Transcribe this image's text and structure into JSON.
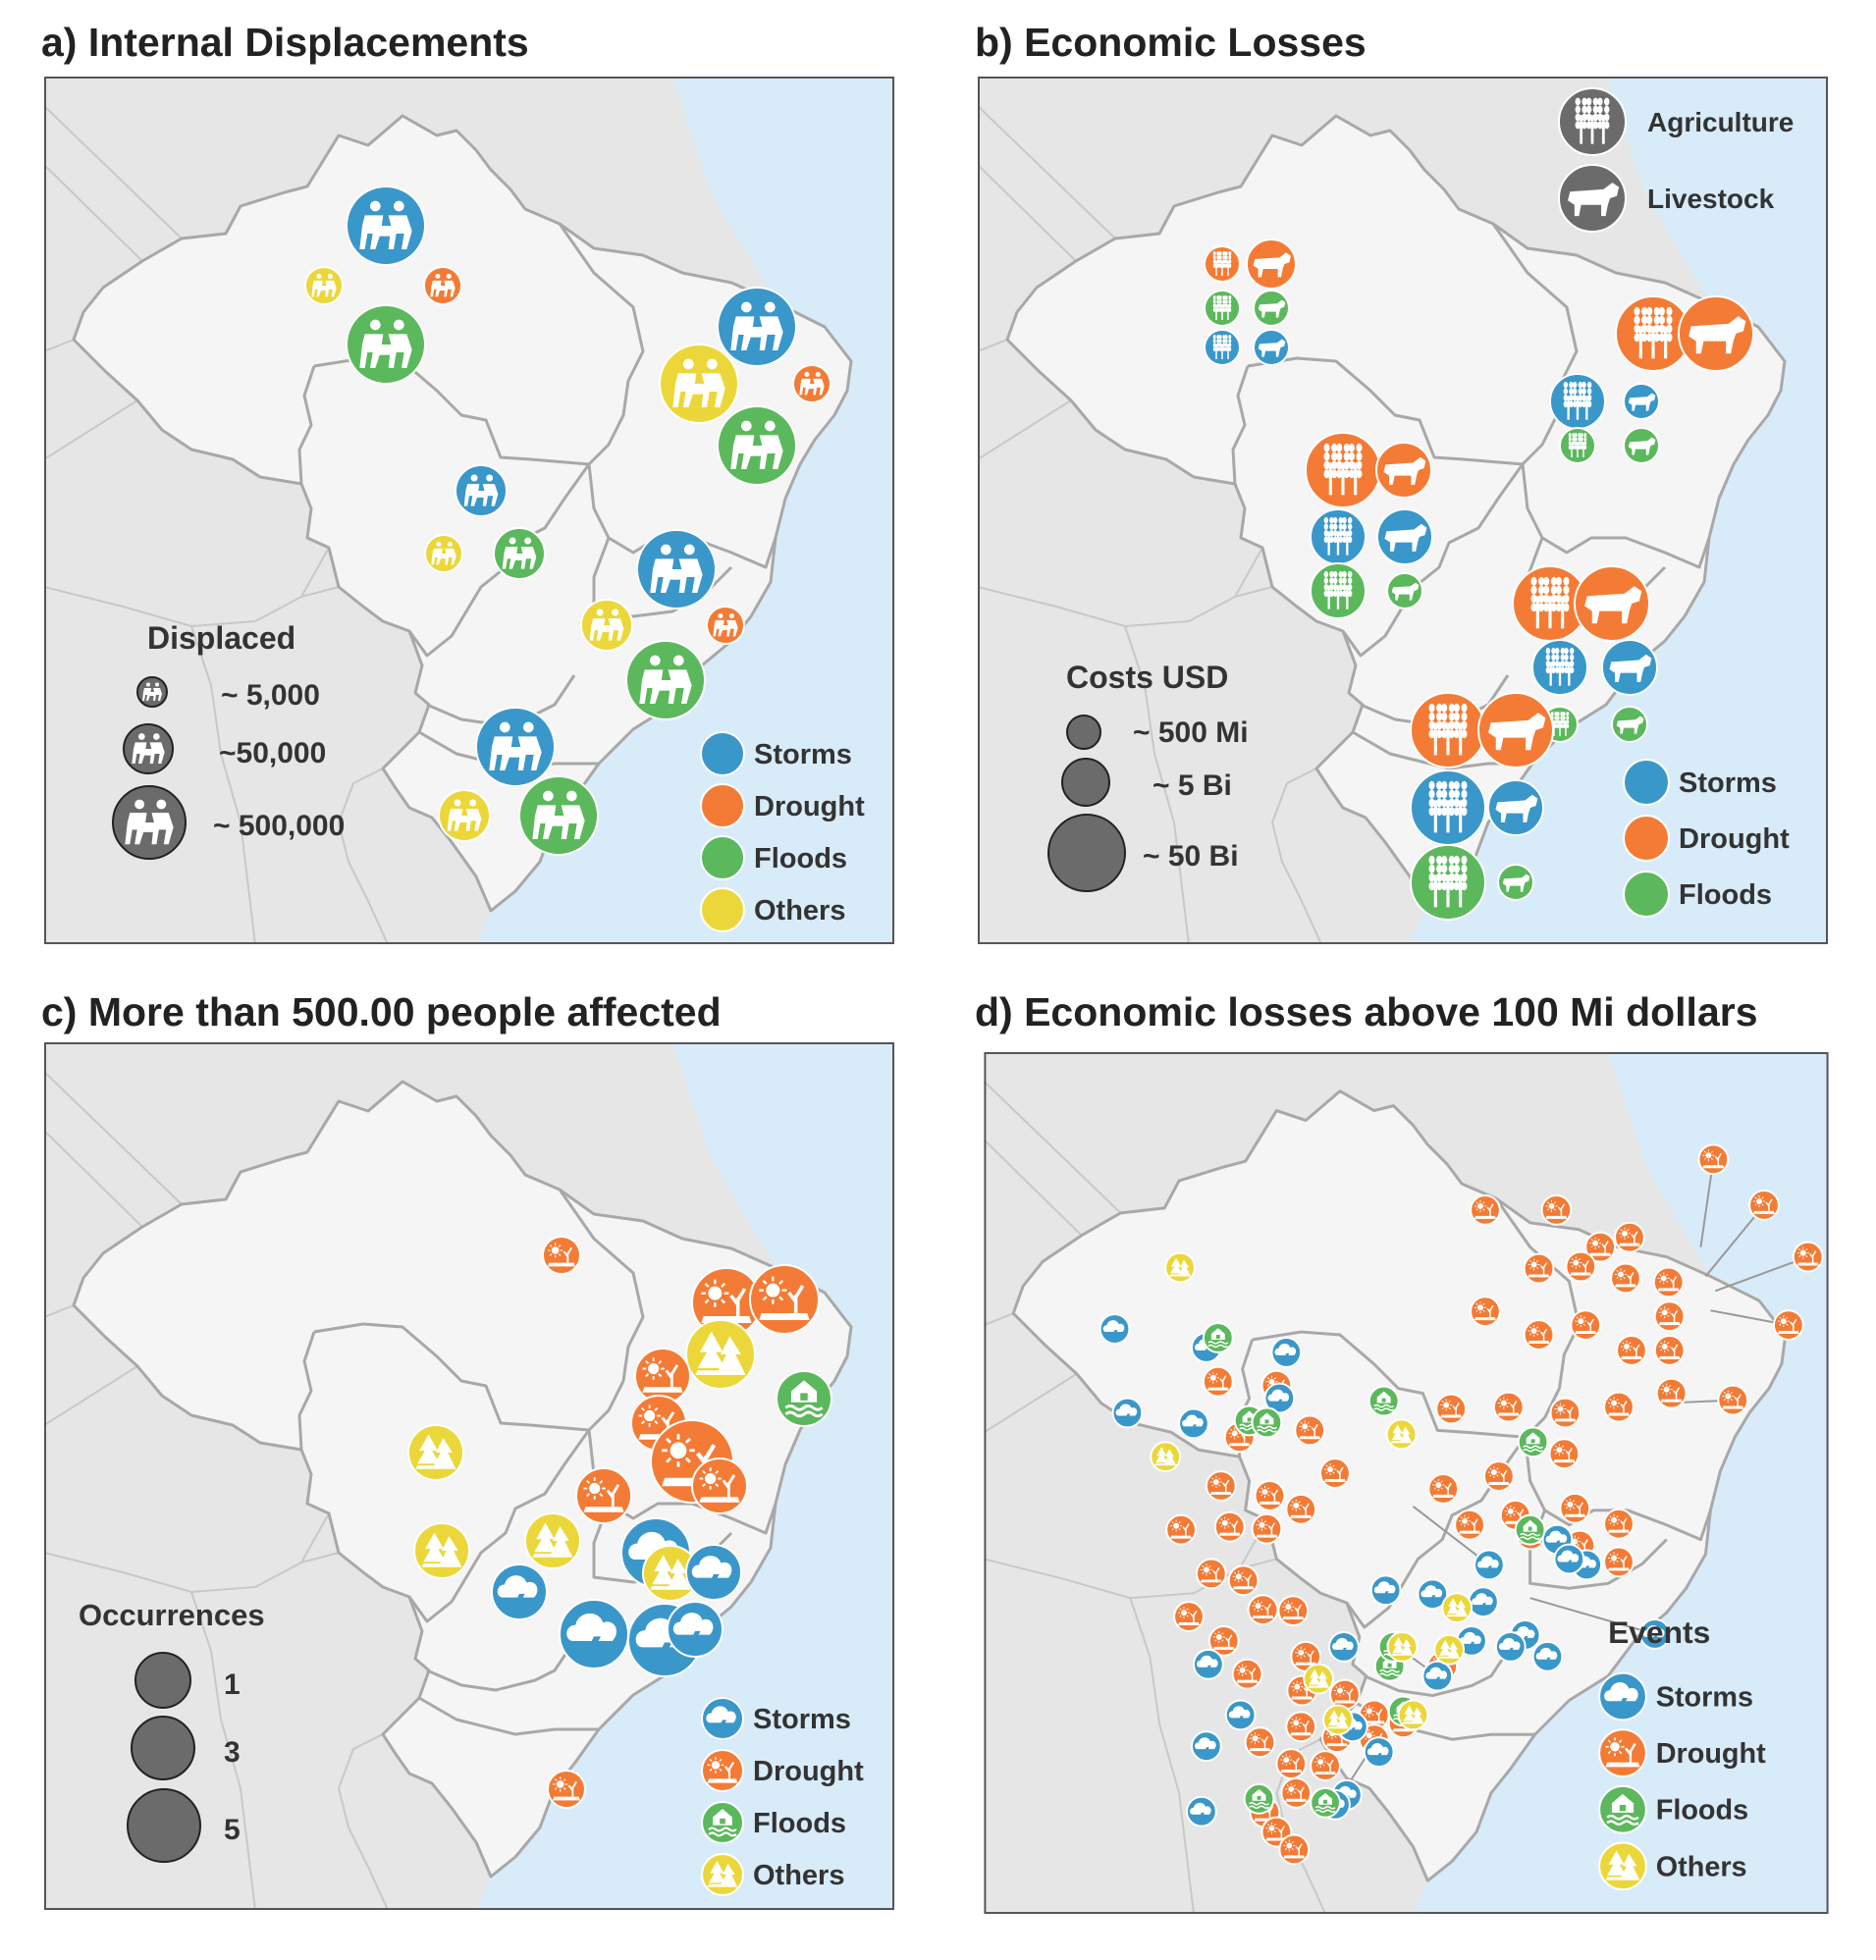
{
  "panels": {
    "a": {
      "title": "a) Internal Displacements",
      "legend_size_title": "Displaced",
      "size_labels": [
        "~ 5,000",
        "~50,000",
        "~ 500,000"
      ],
      "category_legend": [
        "Storms",
        "Drought",
        "Floods",
        "Others"
      ]
    },
    "b": {
      "title": "b) Economic Losses",
      "icon_legend": [
        "Agriculture",
        "Livestock"
      ],
      "legend_size_title": "Costs USD",
      "size_labels": [
        "~ 500 Mi",
        "~ 5 Bi",
        "~ 50 Bi"
      ],
      "category_legend": [
        "Storms",
        "Drought",
        "Floods"
      ]
    },
    "c": {
      "title": "c) More than 500.00 people affected",
      "legend_size_title": "Occurrences",
      "size_labels": [
        "1",
        "3",
        "5"
      ],
      "category_legend": [
        "Storms",
        "Drought",
        "Floods",
        "Others"
      ]
    },
    "d": {
      "title": "d) Economic losses above 100 Mi dollars",
      "legend_title": "Events",
      "category_legend": [
        "Storms",
        "Drought",
        "Floods",
        "Others"
      ]
    }
  },
  "colors": {
    "Storms": "#3a97c9",
    "Drought": "#f47b35",
    "Floods": "#5cb85c",
    "Others": "#ecd73a",
    "legend_size": "#6b6b6b",
    "ocean": "#d8ebf8",
    "land": "#f5f5f5",
    "outside": "#e6e6e6"
  },
  "icons": {
    "Storms": "storm-cloud-icon",
    "Drought": "drought-sun-icon",
    "Floods": "flood-house-icon",
    "Others": "wildfire-trees-icon",
    "displaced": "displaced-people-icon",
    "Agriculture": "wheat-icon",
    "Livestock": "cow-icon"
  },
  "markers": {
    "a": [
      {
        "cat": "Storms",
        "size": 5
      },
      {
        "cat": "Drought",
        "size": 2
      },
      {
        "cat": "Floods",
        "size": 5
      },
      {
        "cat": "Others",
        "size": 2
      },
      {
        "cat": "Storms",
        "size": 5
      },
      {
        "cat": "Drought",
        "size": 2
      },
      {
        "cat": "Floods",
        "size": 5
      },
      {
        "cat": "Others",
        "size": 5
      },
      {
        "cat": "Storms",
        "size": 3
      },
      {
        "cat": "Floods",
        "size": 3
      },
      {
        "cat": "Others",
        "size": 2
      },
      {
        "cat": "Storms",
        "size": 5
      },
      {
        "cat": "Drought",
        "size": 2
      },
      {
        "cat": "Floods",
        "size": 5
      },
      {
        "cat": "Others",
        "size": 3
      },
      {
        "cat": "Storms",
        "size": 5
      },
      {
        "cat": "Floods",
        "size": 5
      },
      {
        "cat": "Others",
        "size": 3
      }
    ],
    "b": [
      {
        "cat": "Drought",
        "kind": "Agriculture",
        "size": 2
      },
      {
        "cat": "Drought",
        "kind": "Livestock",
        "size": 3
      },
      {
        "cat": "Floods",
        "kind": "Agriculture",
        "size": 2
      },
      {
        "cat": "Floods",
        "kind": "Livestock",
        "size": 2
      },
      {
        "cat": "Storms",
        "kind": "Agriculture",
        "size": 2
      },
      {
        "cat": "Storms",
        "kind": "Livestock",
        "size": 2
      },
      {
        "cat": "Drought",
        "kind": "Agriculture",
        "size": 5
      },
      {
        "cat": "Drought",
        "kind": "Livestock",
        "size": 5
      },
      {
        "cat": "Storms",
        "kind": "Agriculture",
        "size": 4
      },
      {
        "cat": "Storms",
        "kind": "Livestock",
        "size": 2
      },
      {
        "cat": "Floods",
        "kind": "Agriculture",
        "size": 2
      },
      {
        "cat": "Floods",
        "kind": "Livestock",
        "size": 2
      },
      {
        "cat": "Drought",
        "kind": "Agriculture",
        "size": 5
      },
      {
        "cat": "Drought",
        "kind": "Livestock",
        "size": 4
      },
      {
        "cat": "Storms",
        "kind": "Agriculture",
        "size": 4
      },
      {
        "cat": "Storms",
        "kind": "Livestock",
        "size": 4
      },
      {
        "cat": "Floods",
        "kind": "Agriculture",
        "size": 4
      },
      {
        "cat": "Floods",
        "kind": "Livestock",
        "size": 2
      },
      {
        "cat": "Drought",
        "kind": "Agriculture",
        "size": 5
      },
      {
        "cat": "Drought",
        "kind": "Livestock",
        "size": 5
      },
      {
        "cat": "Storms",
        "kind": "Agriculture",
        "size": 4
      },
      {
        "cat": "Storms",
        "kind": "Livestock",
        "size": 4
      },
      {
        "cat": "Floods",
        "kind": "Agriculture",
        "size": 2
      },
      {
        "cat": "Floods",
        "kind": "Livestock",
        "size": 2
      },
      {
        "cat": "Drought",
        "kind": "Agriculture",
        "size": 5
      },
      {
        "cat": "Drought",
        "kind": "Livestock",
        "size": 5
      },
      {
        "cat": "Storms",
        "kind": "Agriculture",
        "size": 5
      },
      {
        "cat": "Storms",
        "kind": "Livestock",
        "size": 4
      },
      {
        "cat": "Floods",
        "kind": "Agriculture",
        "size": 5
      },
      {
        "cat": "Floods",
        "kind": "Livestock",
        "size": 2
      }
    ],
    "c": [
      {
        "cat": "Drought",
        "occ": 1
      },
      {
        "cat": "Drought",
        "occ": 3
      },
      {
        "cat": "Drought",
        "occ": 3
      },
      {
        "cat": "Others",
        "occ": 3
      },
      {
        "cat": "Drought",
        "occ": 2
      },
      {
        "cat": "Floods",
        "occ": 2
      },
      {
        "cat": "Drought",
        "occ": 2
      },
      {
        "cat": "Others",
        "occ": 2
      },
      {
        "cat": "Drought",
        "occ": 5
      },
      {
        "cat": "Drought",
        "occ": 2
      },
      {
        "cat": "Others",
        "occ": 2
      },
      {
        "cat": "Others",
        "occ": 2
      },
      {
        "cat": "Drought",
        "occ": 2
      },
      {
        "cat": "Others",
        "occ": 2
      },
      {
        "cat": "Storms",
        "occ": 2
      },
      {
        "cat": "Storms",
        "occ": 3
      },
      {
        "cat": "Others",
        "occ": 2
      },
      {
        "cat": "Storms",
        "occ": 2
      },
      {
        "cat": "Storms",
        "occ": 3
      },
      {
        "cat": "Storms",
        "occ": 4
      },
      {
        "cat": "Storms",
        "occ": 2
      },
      {
        "cat": "Drought",
        "occ": 1
      }
    ],
    "d": {
      "Drought": 68,
      "Storms": 28,
      "Floods": 12,
      "Others": 9
    }
  }
}
